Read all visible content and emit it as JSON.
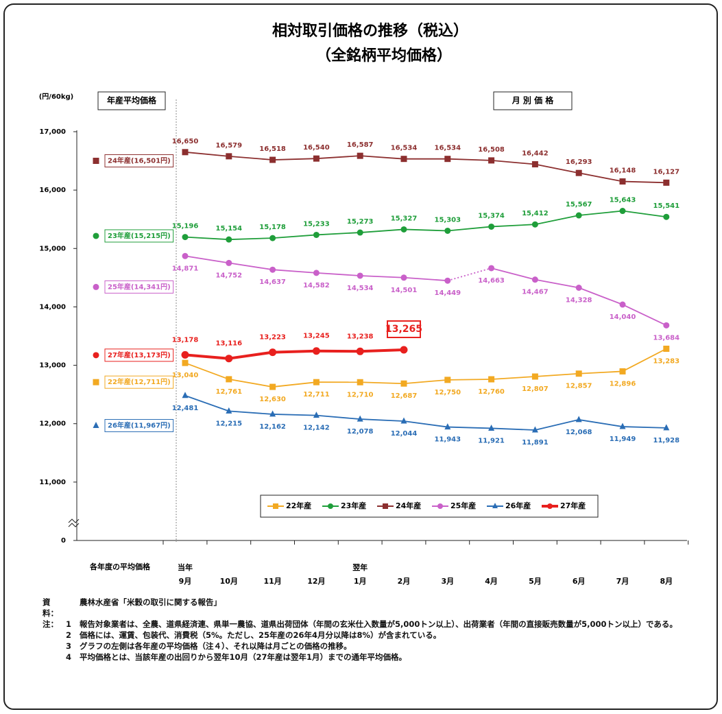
{
  "chart_data": {
    "type": "line",
    "title": "相対取引価格の推移（税込）",
    "subtitle": "（全銘柄平均価格）",
    "y_unit": "(円/60kg)",
    "left_header": "年産平均価格",
    "right_header": "月 別 価 格",
    "left_footer": "各年度の平均価格",
    "categories": [
      "9月",
      "10月",
      "11月",
      "12月",
      "1月",
      "2月",
      "3月",
      "4月",
      "5月",
      "6月",
      "7月",
      "8月"
    ],
    "category_groups": [
      "当年",
      null,
      null,
      null,
      "翌年",
      null,
      null,
      null,
      null,
      null,
      null,
      null
    ],
    "ylim": [
      0,
      17000
    ],
    "ybreak": [
      0,
      10000
    ],
    "yticks": [
      0,
      {
        "value": 11000,
        "label": "11,000"
      },
      {
        "value": 12000,
        "label": "12,000"
      },
      {
        "value": 13000,
        "label": "13,000"
      },
      {
        "value": 14000,
        "label": "14,000"
      },
      {
        "value": 15000,
        "label": "15,000"
      },
      {
        "value": 16000,
        "label": "16,000"
      },
      {
        "value": 17000,
        "label": "17,000"
      }
    ],
    "grid": false,
    "legend": "bottom",
    "series": [
      {
        "name": "22年産",
        "color": "#f2a922",
        "marker": "square",
        "label_position": "below",
        "values": [
          13040,
          12761,
          12630,
          12711,
          12710,
          12687,
          12750,
          12760,
          12807,
          12857,
          12896,
          13283
        ],
        "value_labels": [
          "13,040",
          "12,761",
          "12,630",
          "12,711",
          "12,710",
          "12,687",
          "12,750",
          "12,760",
          "12,807",
          "12,857",
          "12,896",
          "13,283"
        ],
        "average": 12711,
        "average_label": "22年産(12,711円)"
      },
      {
        "name": "23年産",
        "color": "#1f9e3a",
        "marker": "circle",
        "label_position": "above",
        "values": [
          15196,
          15154,
          15178,
          15233,
          15273,
          15327,
          15303,
          15374,
          15412,
          15567,
          15643,
          15541
        ],
        "value_labels": [
          "15,196",
          "15,154",
          "15,178",
          "15,233",
          "15,273",
          "15,327",
          "15,303",
          "15,374",
          "15,412",
          "15,567",
          "15,643",
          "15,541"
        ],
        "average": 15215,
        "average_label": "23年産(15,215円)"
      },
      {
        "name": "24年産",
        "color": "#8c2f2f",
        "marker": "square",
        "label_position": "above",
        "values": [
          16650,
          16579,
          16518,
          16540,
          16587,
          16534,
          16534,
          16508,
          16442,
          16293,
          16148,
          16127
        ],
        "value_labels": [
          "16,650",
          "16,579",
          "16,518",
          "16,540",
          "16,587",
          "16,534",
          "16,534",
          "16,508",
          "16,442",
          "16,293",
          "16,148",
          "16,127"
        ],
        "average": 16501,
        "average_label": "24年産(16,501円)"
      },
      {
        "name": "25年産",
        "color": "#c960c9",
        "marker": "circle",
        "label_position": "below",
        "dotted_after_index": 6,
        "values": [
          14871,
          14752,
          14637,
          14582,
          14534,
          14501,
          14449,
          14663,
          14467,
          14328,
          14040,
          13684
        ],
        "value_labels": [
          "14,871",
          "14,752",
          "14,637",
          "14,582",
          "14,534",
          "14,501",
          "14,449",
          "14,663",
          "14,467",
          "14,328",
          "14,040",
          "13,684"
        ],
        "average": 14341,
        "average_label": "25年産(14,341円)"
      },
      {
        "name": "26年産",
        "color": "#2a6db5",
        "marker": "triangle",
        "label_position": "below",
        "values": [
          12481,
          12215,
          12162,
          12142,
          12078,
          12044,
          11943,
          11921,
          11891,
          12068,
          11949,
          11928
        ],
        "value_labels": [
          "12,481",
          "12,215",
          "12,162",
          "12,142",
          "12,078",
          "12,044",
          "11,943",
          "11,921",
          "11,891",
          "12,068",
          "11,949",
          "11,928"
        ],
        "average": 11967,
        "average_label": "26年産(11,967円)"
      },
      {
        "name": "27年産",
        "color": "#e8201e",
        "marker": "circle",
        "label_position": "above",
        "thick": true,
        "highlight_last": true,
        "values": [
          13178,
          13116,
          13223,
          13245,
          13238,
          13265,
          null,
          null,
          null,
          null,
          null,
          null
        ],
        "value_labels": [
          "13,178",
          "13,116",
          "13,223",
          "13,245",
          "13,238",
          "13,265",
          null,
          null,
          null,
          null,
          null,
          null
        ],
        "average": 13173,
        "average_label": "27年産(13,173円)"
      }
    ],
    "source_label": "資料：",
    "source": "農林水産省「米穀の取引に関する報告」",
    "notes_label": "注：",
    "notes": [
      {
        "number": "1",
        "text": "報告対象業者は、全農、道県経済連、県単一農協、道県出荷団体（年間の玄米仕入数量が5,000トン以上）、出荷業者（年間の直接販売数量が5,000トン以上）である。"
      },
      {
        "number": "2",
        "text": "価格には、運賃、包装代、消費税（5%。ただし、25年産の26年4月分以降は8%）が含まれている。"
      },
      {
        "number": "3",
        "text": "グラフの左側は各年産の平均価格（注４）、それ以降は月ごとの価格の推移。"
      },
      {
        "number": "4",
        "text": "平均価格とは、当該年産の出回りから翌年10月（27年産は翌年1月）までの通年平均価格。"
      }
    ]
  }
}
